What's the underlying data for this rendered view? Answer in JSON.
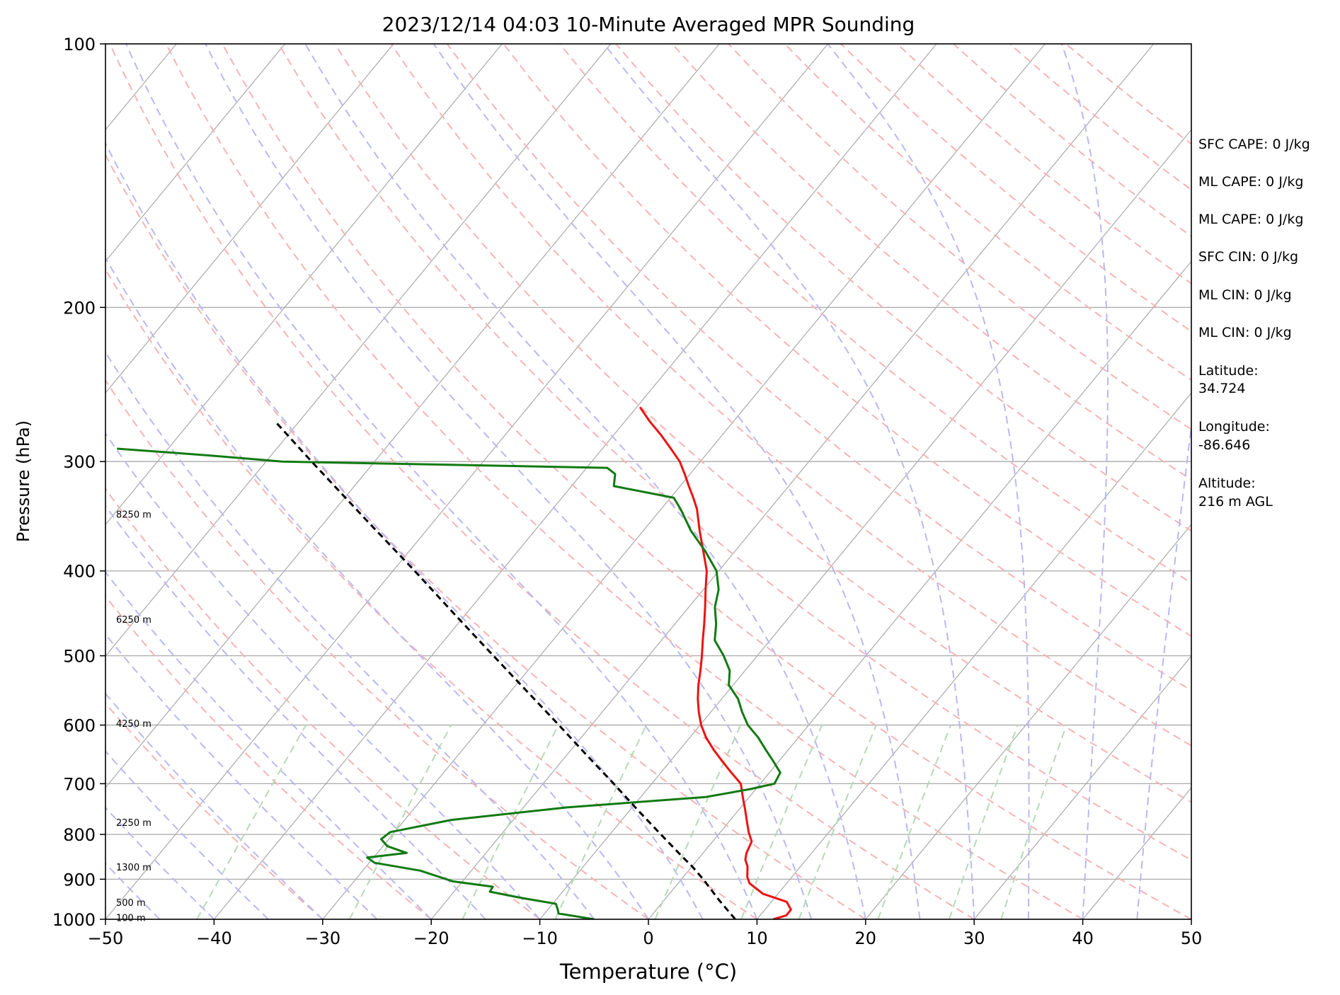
{
  "chart_data": {
    "type": "line",
    "title": "2023/12/14 04:03 10-Minute Averaged MPR Sounding",
    "xlabel": "Temperature (°C)",
    "ylabel": "Pressure (hPa)",
    "xlim": [
      -50,
      50
    ],
    "ylim": [
      1000,
      100
    ],
    "y_scale": "log",
    "skew": true,
    "x_ticks": [
      -50,
      -40,
      -30,
      -20,
      -10,
      0,
      10,
      20,
      30,
      40,
      50
    ],
    "x_tick_labels": [
      "−50",
      "−40",
      "−30",
      "−20",
      "−10",
      "0",
      "10",
      "20",
      "30",
      "40",
      "50"
    ],
    "y_ticks": [
      1000,
      900,
      800,
      700,
      600,
      500,
      400,
      300,
      200,
      100
    ],
    "y_tick_labels": [
      "1000",
      "900",
      "800",
      "700",
      "600",
      "500",
      "400",
      "300",
      "200",
      "100"
    ],
    "grid": true,
    "colors": {
      "temperature": "#ee1111",
      "dewpoint": "#117a11",
      "parcel": "#000000",
      "dry_adiabats": "#f7b3b3",
      "moist_adiabats": "#b8b8f5",
      "mixing_ratio": "#b5dab5",
      "isotherms": "#a9a9a9"
    },
    "series": [
      {
        "key": "temperature",
        "p": [
          1000,
          990,
          975,
          955,
          935,
          910,
          895,
          870,
          855,
          840,
          815,
          795,
          770,
          750,
          725,
          700,
          680,
          660,
          640,
          620,
          600,
          580,
          560,
          540,
          520,
          500,
          480,
          460,
          440,
          420,
          400,
          380,
          360,
          340,
          330,
          320,
          310,
          300,
          290,
          280,
          270,
          260
        ],
        "t": [
          11.5,
          12.4,
          12.4,
          11.4,
          8.6,
          6.6,
          5.9,
          5.1,
          4.4,
          4.0,
          3.6,
          2.6,
          1.5,
          0.6,
          -0.6,
          -1.8,
          -3.5,
          -5.2,
          -6.9,
          -8.5,
          -9.9,
          -11.1,
          -12.2,
          -13.2,
          -14.1,
          -15.1,
          -16.2,
          -17.3,
          -18.5,
          -19.8,
          -21.1,
          -22.9,
          -24.8,
          -26.7,
          -27.9,
          -29.2,
          -30.5,
          -31.9,
          -33.7,
          -35.6,
          -37.7,
          -39.7
        ]
      },
      {
        "key": "dewpoint",
        "p": [
          1000,
          985,
          972,
          960,
          945,
          930,
          918,
          905,
          880,
          862,
          850,
          840,
          825,
          810,
          795,
          770,
          745,
          725,
          710,
          700,
          680,
          660,
          640,
          620,
          600,
          580,
          560,
          540,
          520,
          500,
          480,
          460,
          440,
          420,
          400,
          380,
          360,
          340,
          330,
          320,
          310,
          305,
          300,
          295,
          290
        ],
        "t": [
          -5.0,
          -8.7,
          -9.2,
          -9.7,
          -13.4,
          -16.7,
          -16.8,
          -20.9,
          -24.7,
          -29.5,
          -30.6,
          -27.3,
          -29.6,
          -30.7,
          -30.4,
          -25.7,
          -16.0,
          -4.0,
          -0.5,
          1.3,
          1.0,
          -0.5,
          -2.1,
          -3.7,
          -5.6,
          -7.1,
          -8.5,
          -10.4,
          -11.4,
          -13.1,
          -15.1,
          -16.2,
          -17.6,
          -18.6,
          -20.2,
          -22.7,
          -25.6,
          -28.2,
          -29.7,
          -36.1,
          -36.9,
          -38.1,
          -68.5,
          -76.0,
          -84.7
        ]
      },
      {
        "key": "parcel",
        "p": [
          1000,
          950,
          900,
          870,
          850,
          800,
          750,
          700,
          650,
          600,
          550,
          500,
          450,
          400,
          350,
          300,
          270
        ],
        "t": [
          8.0,
          5.0,
          2.0,
          0.0,
          -1.5,
          -5.3,
          -9.3,
          -13.5,
          -18.1,
          -23.0,
          -28.4,
          -34.3,
          -40.8,
          -48.0,
          -56.3,
          -65.8,
          -72.2
        ]
      }
    ],
    "height_labels": [
      {
        "text": "8250 m",
        "p": 345
      },
      {
        "text": "6250 m",
        "p": 455
      },
      {
        "text": "4250 m",
        "p": 598
      },
      {
        "text": "2250 m",
        "p": 776
      },
      {
        "text": "1300 m",
        "p": 873
      },
      {
        "text": "500 m",
        "p": 958
      },
      {
        "text": "100 m",
        "p": 997
      }
    ]
  },
  "info_panel": [
    "SFC CAPE: 0 J/kg",
    "ML CAPE: 0 J/kg",
    "ML CAPE: 0 J/kg",
    "SFC CIN: 0 J/kg",
    "ML CIN: 0 J/kg",
    "ML CIN: 0 J/kg",
    "Latitude:",
    "34.724",
    "Longitude:",
    "-86.646",
    "Altitude:",
    "216 m AGL"
  ]
}
